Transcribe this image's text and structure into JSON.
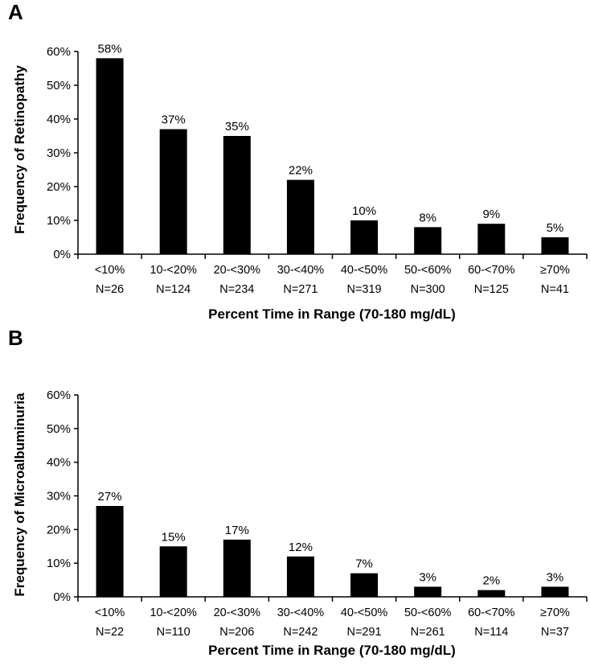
{
  "chart_data": [
    {
      "panel": "A",
      "type": "bar",
      "categories": [
        "<10%",
        "10-<20%",
        "20-<30%",
        "30-<40%",
        "40-<50%",
        "50-<60%",
        "60-<70%",
        "≥70%"
      ],
      "n_labels": [
        "N=26",
        "N=124",
        "N=234",
        "N=271",
        "N=319",
        "N=300",
        "N=125",
        "N=41"
      ],
      "values": [
        58,
        37,
        35,
        22,
        10,
        8,
        9,
        5
      ],
      "value_labels": [
        "58%",
        "37%",
        "35%",
        "22%",
        "10%",
        "8%",
        "9%",
        "5%"
      ],
      "xlabel": "Percent Time in Range (70-180 mg/dL)",
      "ylabel": "Frequency of Retinopathy",
      "ylim": [
        0,
        60
      ],
      "yticks": [
        "0%",
        "10%",
        "20%",
        "30%",
        "40%",
        "50%",
        "60%"
      ],
      "bar_color": "#000000",
      "grid": false
    },
    {
      "panel": "B",
      "type": "bar",
      "categories": [
        "<10%",
        "10-<20%",
        "20-<30%",
        "30-<40%",
        "40-<50%",
        "50-<60%",
        "60-<70%",
        "≥70%"
      ],
      "n_labels": [
        "N=22",
        "N=110",
        "N=206",
        "N=242",
        "N=291",
        "N=261",
        "N=114",
        "N=37"
      ],
      "values": [
        27,
        15,
        17,
        12,
        7,
        3,
        2,
        3
      ],
      "value_labels": [
        "27%",
        "15%",
        "17%",
        "12%",
        "7%",
        "3%",
        "2%",
        "3%"
      ],
      "xlabel": "Percent Time in Range (70-180 mg/dL)",
      "ylabel": "Frequency of Microalbuminuria",
      "ylim": [
        0,
        60
      ],
      "yticks": [
        "0%",
        "10%",
        "20%",
        "30%",
        "40%",
        "50%",
        "60%"
      ],
      "bar_color": "#000000",
      "grid": false
    }
  ]
}
